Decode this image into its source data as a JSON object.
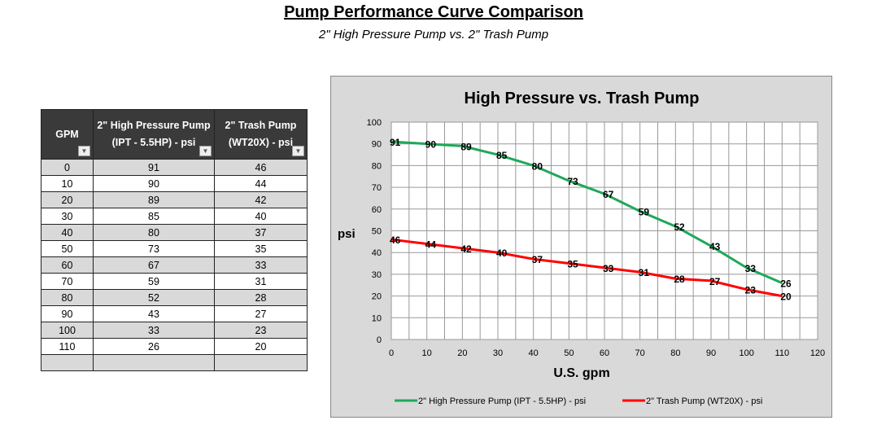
{
  "header": {
    "title": "Pump Performance Curve Comparison",
    "subtitle": "2\" High Pressure Pump  vs.  2\" Trash Pump"
  },
  "table": {
    "headers": [
      "GPM",
      "2\" High Pressure Pump (IPT - 5.5HP) - psi",
      "2\" Trash Pump (WT20X) - psi"
    ],
    "header_lines": [
      [
        "GPM"
      ],
      [
        "2\" High Pressure Pump",
        "(IPT - 5.5HP) - psi"
      ],
      [
        "2\" Trash Pump",
        "(WT20X) - psi"
      ]
    ],
    "rows": [
      [
        "0",
        "91",
        "46"
      ],
      [
        "10",
        "90",
        "44"
      ],
      [
        "20",
        "89",
        "42"
      ],
      [
        "30",
        "85",
        "40"
      ],
      [
        "40",
        "80",
        "37"
      ],
      [
        "50",
        "73",
        "35"
      ],
      [
        "60",
        "67",
        "33"
      ],
      [
        "70",
        "59",
        "31"
      ],
      [
        "80",
        "52",
        "28"
      ],
      [
        "90",
        "43",
        "27"
      ],
      [
        "100",
        "33",
        "23"
      ],
      [
        "110",
        "26",
        "20"
      ]
    ]
  },
  "chart_data": {
    "type": "line",
    "title": "High Pressure  vs.  Trash Pump",
    "xlabel": "U.S. gpm",
    "ylabel": "psi",
    "x": [
      0,
      10,
      20,
      30,
      40,
      50,
      60,
      70,
      80,
      90,
      100,
      110
    ],
    "xlim": [
      0,
      120
    ],
    "ylim": [
      0,
      100
    ],
    "xticks": [
      0,
      10,
      20,
      30,
      40,
      50,
      60,
      70,
      80,
      90,
      100,
      110,
      120
    ],
    "yticks": [
      0,
      10,
      20,
      30,
      40,
      50,
      60,
      70,
      80,
      90,
      100
    ],
    "grid": true,
    "legend": "bottom",
    "series": [
      {
        "name": "2\" High Pressure Pump (IPT - 5.5HP) - psi",
        "color": "#1fa85a",
        "values": [
          91,
          90,
          89,
          85,
          80,
          73,
          67,
          59,
          52,
          43,
          33,
          26
        ]
      },
      {
        "name": "2\" Trash Pump (WT20X) - psi",
        "color": "#ff0000",
        "values": [
          46,
          44,
          42,
          40,
          37,
          35,
          33,
          31,
          28,
          27,
          23,
          20
        ]
      }
    ]
  }
}
